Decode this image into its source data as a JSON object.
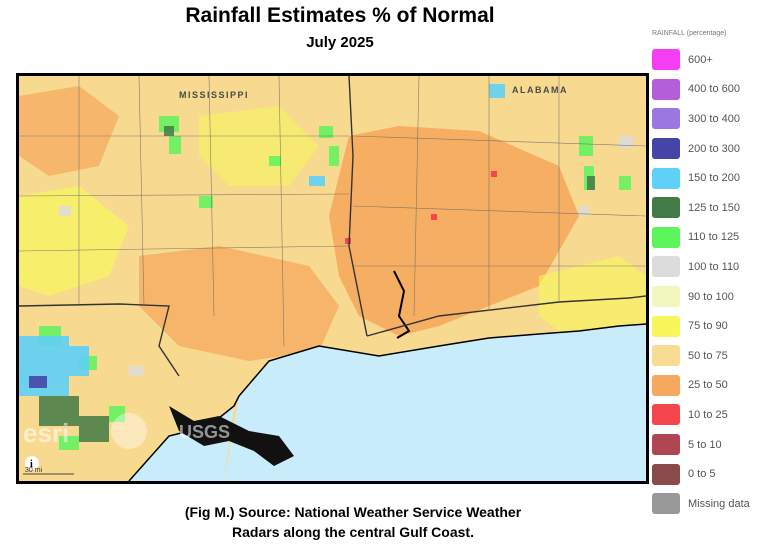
{
  "header": {
    "title": "Rainfall Estimates % of Normal",
    "subtitle": "July 2025"
  },
  "map": {
    "state_labels": [
      "MISSISSIPPI",
      "ALABAMA"
    ],
    "logos": [
      "esri",
      "USGS"
    ],
    "scale_label": "30 mi",
    "info_icon": "info-icon",
    "colors": {
      "water": "#c9ecfb",
      "land_base": "#f7d98f",
      "boundary": "#555555",
      "coastline": "#000000"
    }
  },
  "caption": {
    "line1": "(Fig M.) Source: National Weather Service Weather",
    "line2": "Radars along the central Gulf Coast."
  },
  "legend": {
    "title": "RAINFALL (percentage)",
    "items": [
      {
        "label": "600+",
        "color": "#f53df5"
      },
      {
        "label": "400 to 600",
        "color": "#b25fd9"
      },
      {
        "label": "300 to 400",
        "color": "#9a78e0"
      },
      {
        "label": "200 to 300",
        "color": "#4545a8"
      },
      {
        "label": "150 to 200",
        "color": "#5fd0f7"
      },
      {
        "label": "125 to 150",
        "color": "#437a46"
      },
      {
        "label": "110 to 125",
        "color": "#5cf55c"
      },
      {
        "label": "100 to 110",
        "color": "#dcdcdc"
      },
      {
        "label": "90 to 100",
        "color": "#f2f7c0"
      },
      {
        "label": "75 to 90",
        "color": "#f7f75c"
      },
      {
        "label": "50 to 75",
        "color": "#f9dc94"
      },
      {
        "label": "25 to 50",
        "color": "#f5a85e"
      },
      {
        "label": "10 to 25",
        "color": "#f5464e"
      },
      {
        "label": "5 to 10",
        "color": "#b04651"
      },
      {
        "label": "0 to 5",
        "color": "#8a4a4a"
      },
      {
        "label": "Missing data",
        "color": "#999999"
      }
    ]
  }
}
